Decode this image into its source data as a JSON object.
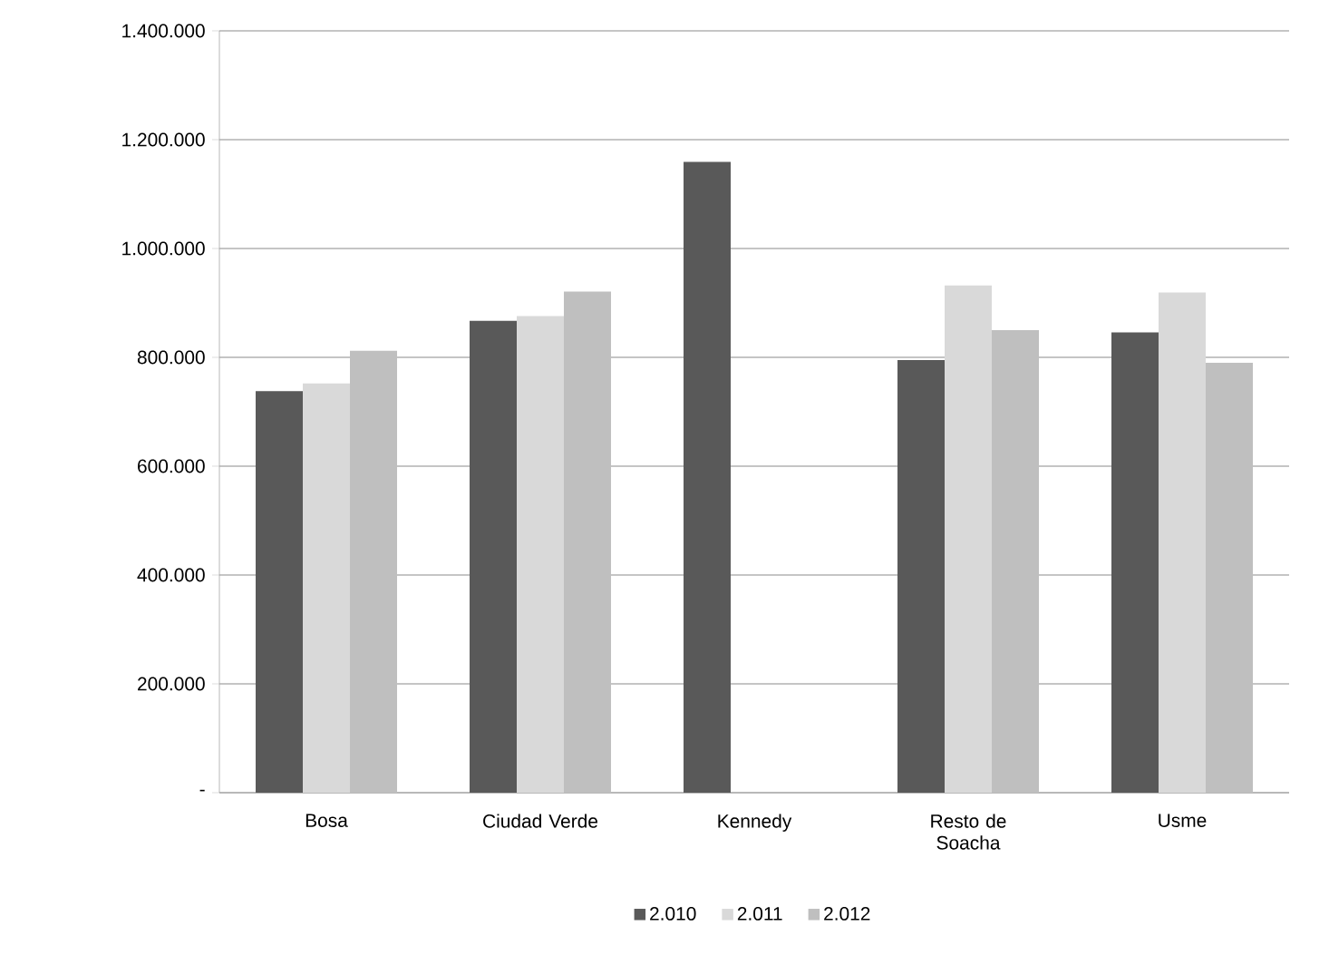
{
  "chart_data": {
    "type": "bar",
    "categories": [
      "Bosa",
      "Ciudad Verde",
      "Kennedy",
      "Resto de Soacha",
      "Usme"
    ],
    "series": [
      {
        "name": "2.010",
        "color": "#595959",
        "values": [
          738000,
          867000,
          1159000,
          795000,
          846000
        ]
      },
      {
        "name": "2.011",
        "color": "#d9d9d9",
        "values": [
          752000,
          876000,
          null,
          932000,
          919000
        ]
      },
      {
        "name": "2.012",
        "color": "#bfbfbf",
        "values": [
          812000,
          921000,
          null,
          850000,
          790000
        ]
      }
    ],
    "ylim": [
      0,
      1400000
    ],
    "yticks": [
      {
        "value": 0,
        "label": "-"
      },
      {
        "value": 200000,
        "label": "200.000"
      },
      {
        "value": 400000,
        "label": "400.000"
      },
      {
        "value": 600000,
        "label": "600.000"
      },
      {
        "value": 800000,
        "label": "800.000"
      },
      {
        "value": 1000000,
        "label": "1.000.000"
      },
      {
        "value": 1200000,
        "label": "1.200.000"
      },
      {
        "value": 1400000,
        "label": "1.400.000"
      }
    ],
    "grid": "y",
    "legend": "bottom"
  }
}
